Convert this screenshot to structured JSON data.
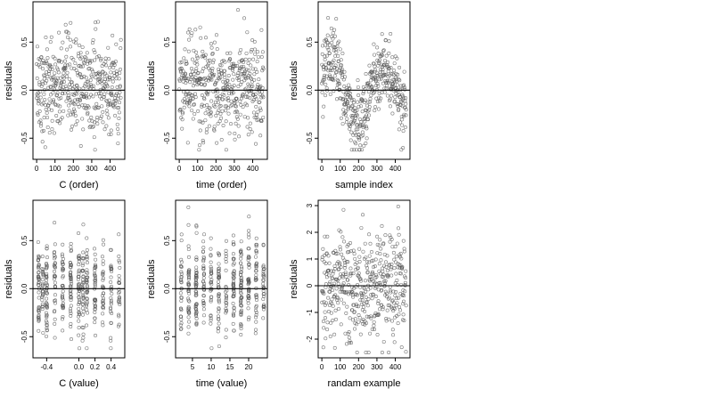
{
  "chart_data": [
    {
      "type": "scatter",
      "xlabel": "C (order)",
      "ylabel": "residuals",
      "xlim": [
        -20,
        480
      ],
      "ylim": [
        -0.72,
        0.92
      ],
      "xticks": [
        0,
        100,
        200,
        300,
        400
      ],
      "xtick_labels": [
        "0",
        "100",
        "200",
        "300",
        "400"
      ],
      "yticks": [
        -0.5,
        0.0,
        0.5
      ],
      "ytick_labels": [
        "-0.5",
        "0.0",
        "0.5"
      ],
      "hline": 0,
      "n_points": 460,
      "x_range": [
        0,
        460
      ],
      "y_range": [
        -0.62,
        0.88
      ],
      "points": []
    },
    {
      "type": "scatter",
      "xlabel": "time (order)",
      "ylabel": "residuals",
      "xlim": [
        -20,
        480
      ],
      "ylim": [
        -0.72,
        0.92
      ],
      "xticks": [
        0,
        100,
        200,
        300,
        400
      ],
      "xtick_labels": [
        "0",
        "100",
        "200",
        "300",
        "400"
      ],
      "yticks": [
        -0.5,
        0.0,
        0.5
      ],
      "ytick_labels": [
        "-0.5",
        "0.0",
        "0.5"
      ],
      "hline": 0,
      "n_points": 460,
      "x_range": [
        0,
        460
      ],
      "y_range": [
        -0.62,
        0.88
      ],
      "points": []
    },
    {
      "type": "scatter",
      "xlabel": "sample index",
      "ylabel": "residuals",
      "xlim": [
        -20,
        480
      ],
      "ylim": [
        -0.72,
        0.92
      ],
      "xticks": [
        0,
        100,
        200,
        300,
        400
      ],
      "xtick_labels": [
        "0",
        "100",
        "200",
        "300",
        "400"
      ],
      "yticks": [
        -0.5,
        0.0,
        0.5
      ],
      "ytick_labels": [
        "-0.5",
        "0.0",
        "0.5"
      ],
      "hline": 0,
      "n_points": 460,
      "x_range": [
        0,
        460
      ],
      "y_range": [
        -0.62,
        0.88
      ],
      "points": []
    },
    {
      "type": "scatter",
      "xlabel": "C (value)",
      "ylabel": "residuals",
      "xlim": [
        -0.57,
        0.57
      ],
      "ylim": [
        -0.72,
        0.92
      ],
      "xticks": [
        -0.4,
        0.0,
        0.2,
        0.4
      ],
      "xtick_labels": [
        "-0.4",
        "0.0",
        "0.2",
        "0.4"
      ],
      "yticks": [
        -0.5,
        0.0,
        0.5
      ],
      "ytick_labels": [
        "-0.5",
        "0.0",
        "0.5"
      ],
      "hline": 0,
      "n_points": 460,
      "x_levels": [
        -0.5,
        -0.45,
        -0.4,
        -0.3,
        -0.2,
        -0.1,
        0.0,
        0.05,
        0.1,
        0.2,
        0.3,
        0.4,
        0.5
      ],
      "y_range": [
        -0.62,
        0.88
      ],
      "points": []
    },
    {
      "type": "scatter",
      "xlabel": "time (value)",
      "ylabel": "residuals",
      "xlim": [
        0.5,
        25
      ],
      "ylim": [
        -0.72,
        0.92
      ],
      "xticks": [
        5,
        10,
        15,
        20
      ],
      "xtick_labels": [
        "5",
        "10",
        "15",
        "20"
      ],
      "yticks": [
        -0.5,
        0.0,
        0.5
      ],
      "ytick_labels": [
        "-0.5",
        "0.0",
        "0.5"
      ],
      "hline": 0,
      "n_points": 460,
      "x_levels": [
        2,
        4,
        6,
        8,
        10,
        12,
        14,
        16,
        18,
        20,
        22,
        24
      ],
      "y_range": [
        -0.62,
        0.88
      ],
      "points": []
    },
    {
      "type": "scatter",
      "xlabel": "randam example",
      "ylabel": "residuals",
      "xlim": [
        -20,
        480
      ],
      "ylim": [
        -2.7,
        3.2
      ],
      "xticks": [
        0,
        100,
        200,
        300,
        400
      ],
      "xtick_labels": [
        "0",
        "100",
        "200",
        "300",
        "400"
      ],
      "yticks": [
        -2,
        -1,
        0,
        1,
        2,
        3
      ],
      "ytick_labels": [
        "-2",
        "-1",
        "0",
        "1",
        "2",
        "3"
      ],
      "hline": 0,
      "n_points": 460,
      "x_range": [
        0,
        460
      ],
      "y_range": [
        -2.5,
        3.0
      ],
      "points": []
    }
  ]
}
